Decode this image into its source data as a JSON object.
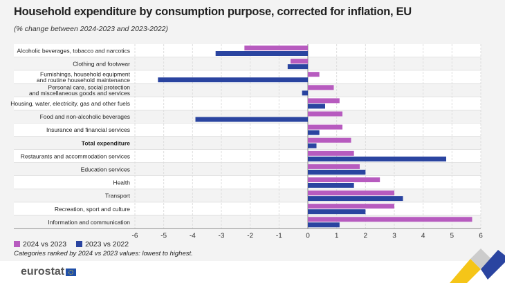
{
  "title": "Household expenditure by consumption purpose, corrected for inflation, EU",
  "subtitle": "(% change between 2024-2023 and 2023-2022)",
  "legend": [
    "2024 vs 2023",
    "2023 vs 2022"
  ],
  "note": "Categories ranked by 2024 vs 2023 values: lowest to highest.",
  "logo": "eurostat",
  "colors": {
    "s1": "#b75bbf",
    "s2": "#2a44a0"
  },
  "chart_data": {
    "type": "bar",
    "orientation": "horizontal",
    "title": "Household expenditure by consumption purpose, corrected for inflation, EU",
    "categories": [
      "Alcoholic beverages, tobacco and narcotics",
      "Clothing and footwear",
      "Furnishings, household equipment\nand routine household maintenance",
      "Personal care, social protection\nand miscellaneous goods and services",
      "Housing, water, electricity, gas and other fuels",
      "Food and non-alcoholic beverages",
      "Insurance and financial services",
      "Total expenditure",
      "Restaurants and accommodation services",
      "Education services",
      "Health",
      "Transport",
      "Recreation, sport and culture",
      "Information and communication"
    ],
    "bold_category": "Total expenditure",
    "series": [
      {
        "name": "2024 vs 2023",
        "values": [
          -2.2,
          -0.6,
          0.4,
          0.9,
          1.1,
          1.2,
          1.2,
          1.5,
          1.6,
          1.8,
          2.5,
          3.0,
          3.0,
          5.7
        ]
      },
      {
        "name": "2023 vs 2022",
        "values": [
          -3.2,
          -0.7,
          -5.2,
          -0.2,
          0.6,
          -3.9,
          0.4,
          0.3,
          4.8,
          2.0,
          1.6,
          3.3,
          2.0,
          1.1
        ]
      }
    ],
    "xlim": [
      -6,
      6
    ],
    "xticks": [
      "-6",
      "-5",
      "-4",
      "-3",
      "-2",
      "-1",
      "0",
      "1",
      "2",
      "3",
      "4",
      "5",
      "6"
    ],
    "grid": true,
    "legend_position": "bottom-left"
  }
}
